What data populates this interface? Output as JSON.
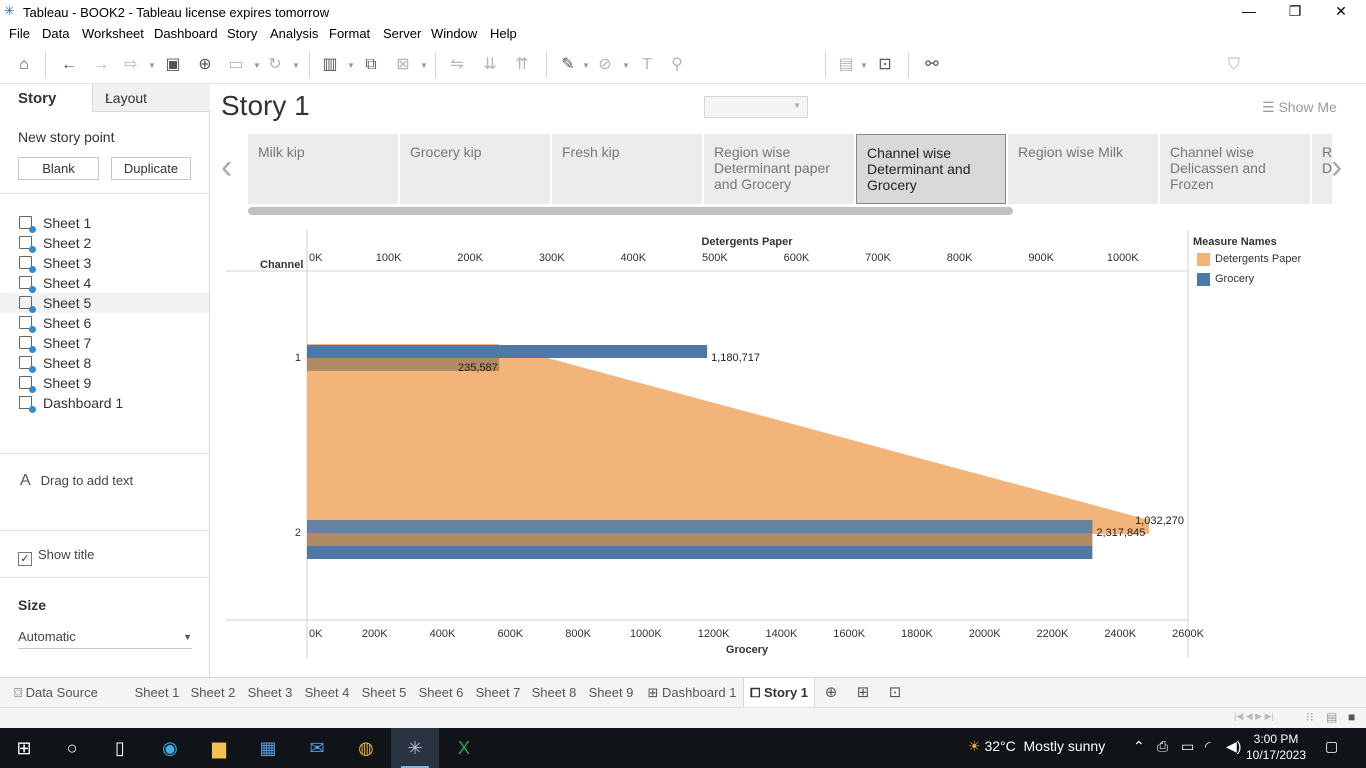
{
  "window": {
    "title": "Tableau - BOOK2 - Tableau license expires tomorrow",
    "minimize": "—",
    "restore": "❐",
    "close": "✕"
  },
  "menu": [
    "File",
    "Data",
    "Worksheet",
    "Dashboard",
    "Story",
    "Analysis",
    "Format",
    "Server",
    "Window",
    "Help"
  ],
  "toolbar": {
    "show_me": "Show Me"
  },
  "left_panel": {
    "tab_story": "Story",
    "tab_layout": "Layout",
    "collapse": "‹",
    "new_story_point": "New story point",
    "blank_button": "Blank",
    "duplicate_button": "Duplicate",
    "sheets": [
      "Sheet 1",
      "Sheet 2",
      "Sheet 3",
      "Sheet 4",
      "Sheet 5",
      "Sheet 6",
      "Sheet 7",
      "Sheet 8",
      "Sheet 9",
      "Dashboard 1"
    ],
    "drag_text_icon": "A",
    "drag_text": "Drag to add text",
    "show_title_check": "✓",
    "show_title": "Show title",
    "size_label": "Size",
    "size_value": "Automatic",
    "size_caret": "▼"
  },
  "story": {
    "title": "Story 1",
    "nav_prev": "‹",
    "nav_next": "›",
    "points": [
      "Milk kip",
      "Grocery kip",
      "Fresh kip",
      "Region wise Determinant paper and Grocery",
      "Channel wise Determinant  and Grocery",
      "Region wise Milk",
      "Channel wise Delicassen and Frozen",
      "R\nD"
    ],
    "active_index": 4
  },
  "chart_data": {
    "type": "bar",
    "row_header": "Channel",
    "categories": [
      "1",
      "2"
    ],
    "top_axis": {
      "label": "Detergents Paper",
      "range": [
        0,
        1080000
      ],
      "ticks": [
        "0K",
        "100K",
        "200K",
        "300K",
        "400K",
        "500K",
        "600K",
        "700K",
        "800K",
        "900K",
        "1000K"
      ]
    },
    "bottom_axis": {
      "label": "Grocery",
      "range": [
        0,
        2600000
      ],
      "ticks": [
        "0K",
        "200K",
        "400K",
        "600K",
        "800K",
        "1000K",
        "1200K",
        "1400K",
        "1600K",
        "1800K",
        "2000K",
        "2200K",
        "2400K",
        "2600K"
      ]
    },
    "series": [
      {
        "name": "Detergents Paper",
        "values": [
          235587,
          1032270
        ],
        "labels": [
          "235,587",
          "1,032,270"
        ],
        "color": "#f3b47a"
      },
      {
        "name": "Grocery",
        "values": [
          1180717,
          2317845
        ],
        "labels": [
          "1,180,717",
          "2,317,845"
        ],
        "color": "#4e79a7"
      }
    ],
    "legend": {
      "title": "Measure Names",
      "placement": "right",
      "items": [
        "Detergents Paper",
        "Grocery"
      ]
    }
  },
  "sheet_tabs": {
    "data_source": "Data Source",
    "tabs": [
      "Sheet 1",
      "Sheet 2",
      "Sheet 3",
      "Sheet 4",
      "Sheet 5",
      "Sheet 6",
      "Sheet 7",
      "Sheet 8",
      "Sheet 9",
      "Dashboard 1",
      "Story 1"
    ],
    "active": "Story 1"
  },
  "taskbar": {
    "weather_temp": "32°C",
    "weather_desc": "Mostly sunny",
    "time": "3:00 PM",
    "date": "10/17/2023"
  }
}
